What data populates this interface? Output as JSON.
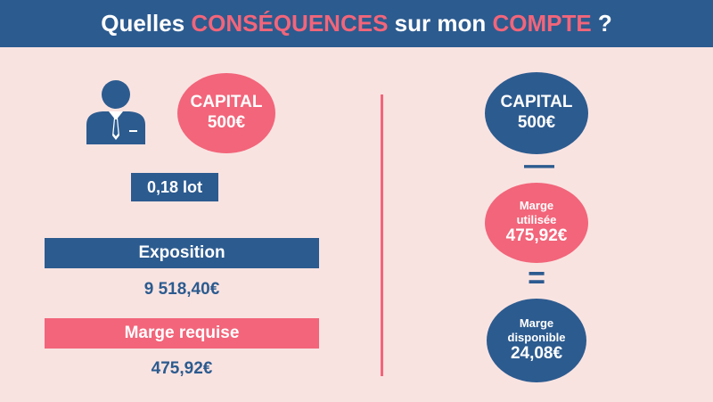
{
  "header": {
    "part1": "Quelles ",
    "accent1": "CONSÉQUENCES",
    "part2": " sur mon ",
    "accent2": "COMPTE",
    "part3": " ?"
  },
  "left": {
    "capital_label": "CAPITAL",
    "capital_value": "500€",
    "lot": "0,18 lot",
    "exposition_label": "Exposition",
    "exposition_value": "9 518,40€",
    "marge_requise_label": "Marge requise",
    "marge_requise_value": "475,92€"
  },
  "right": {
    "capital_label": "CAPITAL",
    "capital_value": "500€",
    "minus": "—",
    "marge_utilisee_line1": "Marge",
    "marge_utilisee_line2": "utilisée",
    "marge_utilisee_value": "475,92€",
    "equals": "=",
    "marge_dispo_line1": "Marge",
    "marge_dispo_line2": "disponible",
    "marge_dispo_value": "24,08€"
  },
  "colors": {
    "blue": "#2c5b8f",
    "pink": "#f2657a",
    "background": "#f9e3e1"
  },
  "icons": {
    "person": "businessman-icon"
  }
}
